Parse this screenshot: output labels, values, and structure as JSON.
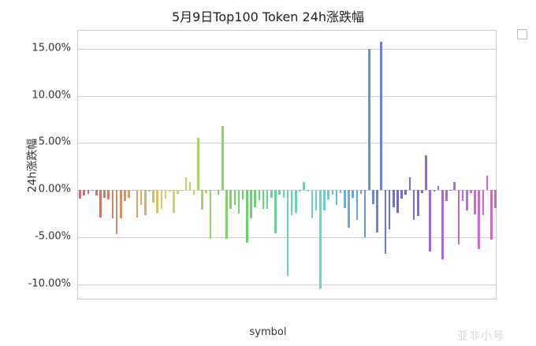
{
  "chart_data": {
    "type": "bar",
    "title": "5月9日Top100 Token 24h涨跌幅",
    "xlabel": "symbol",
    "ylabel": "24h涨跌幅",
    "yticks": [
      "15.00%",
      "10.00%",
      "5.00%",
      "0.00%",
      "-5.00%",
      "-10.00%"
    ],
    "ytick_values": [
      15,
      10,
      5,
      0,
      -5,
      -10
    ],
    "ylim": [
      -11.8,
      16.5
    ],
    "grid": true,
    "legend_position": "upper right outside (empty)",
    "palette": "husl gradient (pink→orange→olive→green→teal→blue→purple→pink)",
    "values": [
      -0.9,
      -0.6,
      -0.4,
      -0.1,
      -0.6,
      -2.9,
      -0.8,
      -1.0,
      -3.0,
      -4.7,
      -3.0,
      -1.2,
      -0.8,
      -0.1,
      -2.9,
      -1.6,
      -2.7,
      -0.2,
      -1.3,
      -2.4,
      -2.0,
      -0.9,
      -0.2,
      -2.4,
      -0.4,
      0.0,
      1.3,
      0.8,
      -0.5,
      5.5,
      -2.1,
      -0.3,
      -5.2,
      -0.1,
      -0.5,
      6.8,
      -5.2,
      -2.0,
      -1.6,
      -2.5,
      -1.0,
      -5.6,
      -3.0,
      -1.8,
      -1.1,
      -2.0,
      -2.0,
      -0.8,
      -4.6,
      -0.5,
      -0.8,
      -9.1,
      -2.7,
      -2.4,
      -0.2,
      0.8,
      -0.2,
      -3.0,
      -2.2,
      -10.5,
      -2.2,
      -1.0,
      -0.5,
      -1.6,
      -0.3,
      -1.9,
      -4.0,
      -0.8,
      -3.2,
      -0.4,
      -5.0,
      15.0,
      -1.5,
      -4.5,
      15.7,
      -6.8,
      -4.2,
      -1.8,
      -2.4,
      -0.9,
      -0.5,
      1.3,
      -3.2,
      -2.8,
      -0.3,
      3.7,
      -6.5,
      -0.2,
      0.4,
      -7.4,
      -1.2,
      -0.1,
      0.8,
      -5.8,
      -1.2,
      -2.2,
      -0.3,
      -2.6,
      -6.3,
      -2.7,
      1.5,
      -5.3,
      -1.9
    ]
  },
  "legend": {
    "label": ""
  },
  "watermark": "亚非小号"
}
